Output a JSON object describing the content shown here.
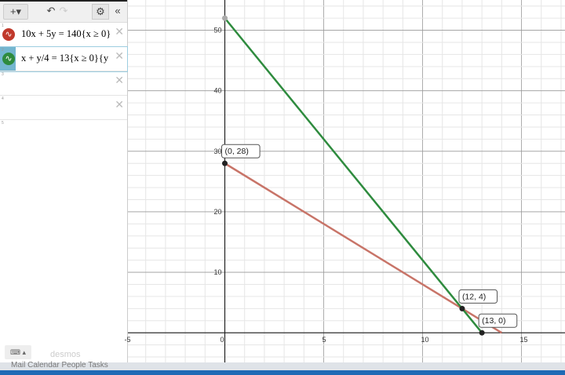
{
  "toolbar": {
    "add": "+▾",
    "undo": "↶",
    "redo": "↷",
    "settings": "⚙",
    "collapse": "«"
  },
  "expressions": [
    {
      "index": "1",
      "latex": "10x + 5y = 140{x ≥ 0}",
      "color": "#c0392b"
    },
    {
      "index": "2",
      "latex": "x + y/4 = 13{x ≥ 0}{y",
      "color": "#2e8b3e"
    },
    {
      "index": "3",
      "latex": ""
    },
    {
      "index": "4",
      "latex": ""
    },
    {
      "index": "5",
      "latex": ""
    }
  ],
  "keyboard_label": "⌨ ▴",
  "brand": "desmos",
  "taskbar": "Mail   Calendar   People   Tasks",
  "chart_data": {
    "type": "line",
    "xlim": [
      -4.9,
      17.2
    ],
    "ylim": [
      -4.9,
      55
    ],
    "x_ticks": [
      -5,
      0,
      5,
      10,
      15
    ],
    "y_ticks": [
      10,
      20,
      30,
      40,
      50
    ],
    "grid": true,
    "series": [
      {
        "equation": "10x + 5y = 140",
        "color": "#c87468",
        "points": [
          [
            0,
            28
          ],
          [
            14,
            0
          ]
        ]
      },
      {
        "equation": "x + y/4 = 13",
        "color": "#2e8b3e",
        "points": [
          [
            0,
            52
          ],
          [
            13,
            0
          ]
        ]
      }
    ],
    "points": [
      {
        "x": 0,
        "y": 28,
        "label": "(0, 28)"
      },
      {
        "x": 12,
        "y": 4,
        "label": "(12, 4)"
      },
      {
        "x": 13,
        "y": 0,
        "label": "(13, 0)"
      },
      {
        "x": 0,
        "y": 52,
        "label": ""
      }
    ]
  }
}
